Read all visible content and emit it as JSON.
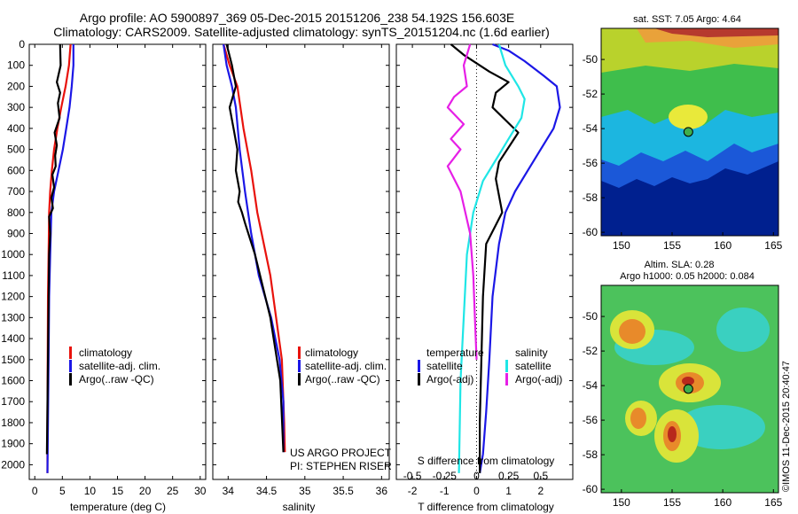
{
  "title": {
    "line1": "Argo profile: AO 5900897_369 05-Dec-2015 20151206_238 54.192S 156.603E",
    "line2": "Climatology: CARS2009. Satellite-adjusted climatology: synTS_20151204.nc (1.6d earlier)"
  },
  "colors": {
    "climatology": "#e8120c",
    "satellite": "#1b17e6",
    "argo": "#000000",
    "salinity_sat": "#1fe6e6",
    "salinity_argo": "#e61fe6"
  },
  "credit": "©IMOS 11-Dec-2015 20:40:47",
  "project": {
    "line1": "US ARGO PROJECT",
    "line2": "PI: STEPHEN RISER"
  },
  "sst_map": {
    "title": "sat. SST: 7.05 Argo: 4.64",
    "xticks": [
      "150",
      "155",
      "160",
      "165"
    ],
    "xtick_values": [
      150,
      155,
      160,
      165
    ],
    "yticks": [
      "-50",
      "-52",
      "-54",
      "-56",
      "-58",
      "-60"
    ],
    "ytick_values": [
      -50,
      -52,
      -54,
      -56,
      -58,
      -60
    ],
    "xlim": [
      148,
      165.5
    ],
    "ylim": [
      -60.2,
      -48.2
    ],
    "float": {
      "lon": 156.603,
      "lat": -54.192
    }
  },
  "sla_map": {
    "title1": "Altim. SLA: 0.28",
    "title2": "Argo h1000: 0.05 h2000: 0.084",
    "xticks": [
      "150",
      "155",
      "160",
      "165"
    ],
    "xtick_values": [
      150,
      155,
      160,
      165
    ],
    "yticks": [
      "-50",
      "-52",
      "-54",
      "-56",
      "-58",
      "-60"
    ],
    "ytick_values": [
      -50,
      -52,
      -54,
      -56,
      -58,
      -60
    ],
    "xlim": [
      148,
      165.5
    ],
    "ylim": [
      -60.2,
      -48.2
    ],
    "float": {
      "lon": 156.603,
      "lat": -54.192
    }
  },
  "chart_data": [
    {
      "type": "line",
      "xlabel": "temperature (deg C)",
      "ylabel": "",
      "xlim": [
        -1,
        31
      ],
      "ylim": [
        2070,
        0
      ],
      "xticks": [
        "0",
        "5",
        "10",
        "15",
        "20",
        "25",
        "30"
      ],
      "xtick_values": [
        0,
        5,
        10,
        15,
        20,
        25,
        30
      ],
      "yticks": [
        "0",
        "100",
        "200",
        "300",
        "400",
        "500",
        "600",
        "700",
        "800",
        "900",
        "1000",
        "1100",
        "1200",
        "1300",
        "1400",
        "1500",
        "1600",
        "1700",
        "1800",
        "1900",
        "2000"
      ],
      "ytick_values": [
        0,
        100,
        200,
        300,
        400,
        500,
        600,
        700,
        800,
        900,
        1000,
        1100,
        1200,
        1300,
        1400,
        1500,
        1600,
        1700,
        1800,
        1900,
        2000
      ],
      "legend": [
        "climatology",
        "satellite-adj. clim.",
        "Argo(..raw -QC)"
      ],
      "series": [
        {
          "name": "climatology",
          "color": "#e8120c",
          "x": [
            6.5,
            6.2,
            5.6,
            4.8,
            4.1,
            3.5,
            3.1,
            2.8,
            2.6,
            2.5,
            2.4,
            2.35,
            2.3,
            2.3
          ],
          "y": [
            0,
            100,
            200,
            300,
            400,
            500,
            600,
            700,
            800,
            1000,
            1200,
            1500,
            1800,
            2040
          ]
        },
        {
          "name": "satellite-adj. clim.",
          "color": "#1b17e6",
          "x": [
            7.0,
            7.0,
            6.7,
            6.3,
            5.7,
            5.1,
            4.3,
            3.5,
            3.0,
            2.8,
            2.6,
            2.5,
            2.4,
            2.3
          ],
          "y": [
            0,
            100,
            200,
            300,
            400,
            500,
            600,
            700,
            800,
            1000,
            1200,
            1500,
            1800,
            2040
          ]
        },
        {
          "name": "Argo(..raw -QC)",
          "color": "#000000",
          "x": [
            4.6,
            4.7,
            4.0,
            4.6,
            4.2,
            4.5,
            3.6,
            4.0,
            3.7,
            3.8,
            3.2,
            3.5,
            3.0,
            3.3,
            2.6,
            2.8,
            2.6,
            2.4,
            2.2
          ],
          "y": [
            0,
            100,
            180,
            230,
            280,
            350,
            420,
            480,
            530,
            580,
            620,
            680,
            730,
            780,
            820,
            900,
            1000,
            1500,
            1950
          ]
        }
      ]
    },
    {
      "type": "line",
      "xlabel": "salinity",
      "ylabel": "",
      "xlim": [
        33.8,
        36.1
      ],
      "ylim": [
        2070,
        0
      ],
      "xticks": [
        "34",
        "34.5",
        "35",
        "35.5",
        "36"
      ],
      "xtick_values": [
        34,
        34.5,
        35,
        35.5,
        36
      ],
      "legend": [
        "climatology",
        "satellite-adj. clim.",
        "Argo(..raw -QC)"
      ],
      "series": [
        {
          "name": "climatology",
          "color": "#e8120c",
          "x": [
            33.94,
            34.02,
            34.12,
            34.2,
            34.3,
            34.38,
            34.55,
            34.7,
            34.73,
            34.74
          ],
          "y": [
            0,
            100,
            200,
            400,
            600,
            800,
            1100,
            1500,
            1800,
            1940
          ]
        },
        {
          "name": "satellite-adj. clim.",
          "color": "#1b17e6",
          "x": [
            33.94,
            33.98,
            34.05,
            34.1,
            34.15,
            34.22,
            34.3,
            34.4,
            34.56,
            34.67,
            34.72,
            34.72
          ],
          "y": [
            0,
            100,
            200,
            300,
            500,
            700,
            900,
            1100,
            1300,
            1500,
            1700,
            1940
          ]
        },
        {
          "name": "Argo(..raw -QC)",
          "color": "#000000",
          "x": [
            33.98,
            34.05,
            34.1,
            34.02,
            34.07,
            34.12,
            34.1,
            34.15,
            34.13,
            34.18,
            34.22,
            34.35,
            34.55,
            34.68,
            34.72
          ],
          "y": [
            0,
            100,
            200,
            300,
            400,
            500,
            600,
            700,
            750,
            800,
            850,
            1000,
            1300,
            1600,
            1940
          ]
        }
      ]
    },
    {
      "type": "line",
      "xlabel": "T difference from climatology",
      "xlabel_top": "S difference from climatology",
      "xlim": [
        -2.5,
        3.0
      ],
      "ylim": [
        2070,
        0
      ],
      "xticks": [
        "-2",
        "-1",
        "0",
        "1",
        "2"
      ],
      "xtick_values": [
        -2,
        -1,
        0,
        1,
        2
      ],
      "xticks_s": [
        "-0.5",
        "-0.25",
        "0",
        "0.25",
        "0.5"
      ],
      "xtick_s_values": [
        -0.5,
        -0.25,
        0,
        0.25,
        0.5
      ],
      "legend_titles": [
        "temperature",
        "salinity"
      ],
      "legend": [
        "satellite",
        "Argo(-adj)",
        "satellite",
        "Argo(-adj)"
      ],
      "series": [
        {
          "name": "satellite",
          "group": "temperature",
          "color": "#1b17e6",
          "x": [
            0.5,
            1.0,
            1.5,
            2.1,
            2.5,
            2.6,
            2.4,
            2.0,
            1.6,
            1.2,
            0.9,
            0.7,
            0.5,
            0.4,
            0.3,
            0.2,
            0.1
          ],
          "y": [
            0,
            30,
            80,
            150,
            200,
            300,
            400,
            500,
            600,
            700,
            800,
            950,
            1200,
            1500,
            1750,
            1950,
            2040
          ]
        },
        {
          "name": "Argo(-adj)",
          "group": "temperature",
          "color": "#000000",
          "x": [
            -0.8,
            -0.4,
            0.4,
            1.0,
            0.6,
            0.5,
            1.3,
            0.7,
            0.6,
            0.8,
            0.3,
            0.2,
            0.15,
            0.1,
            0.1
          ],
          "y": [
            0,
            50,
            130,
            180,
            230,
            300,
            420,
            560,
            640,
            800,
            950,
            1200,
            1500,
            1800,
            2040
          ]
        },
        {
          "name": "satellite",
          "group": "salinity",
          "color": "#1fe6e6",
          "x": [
            0.7,
            0.9,
            1.3,
            1.5,
            1.4,
            1.0,
            0.6,
            0.2,
            -0.1,
            -0.3,
            -0.4,
            -0.5,
            -0.55
          ],
          "y": [
            0,
            100,
            200,
            260,
            350,
            450,
            550,
            650,
            800,
            1000,
            1300,
            1600,
            2040
          ]
        },
        {
          "name": "Argo(-adj)",
          "group": "salinity",
          "color": "#e61fe6",
          "x": [
            -0.2,
            -0.4,
            -0.3,
            -0.7,
            -0.9,
            -0.4,
            -0.8,
            -0.5,
            -0.9,
            -0.5,
            -0.2,
            -0.1,
            -0.05,
            0.0
          ],
          "y": [
            0,
            100,
            200,
            250,
            300,
            380,
            450,
            500,
            580,
            700,
            900,
            1100,
            1300,
            1500
          ]
        }
      ]
    }
  ]
}
